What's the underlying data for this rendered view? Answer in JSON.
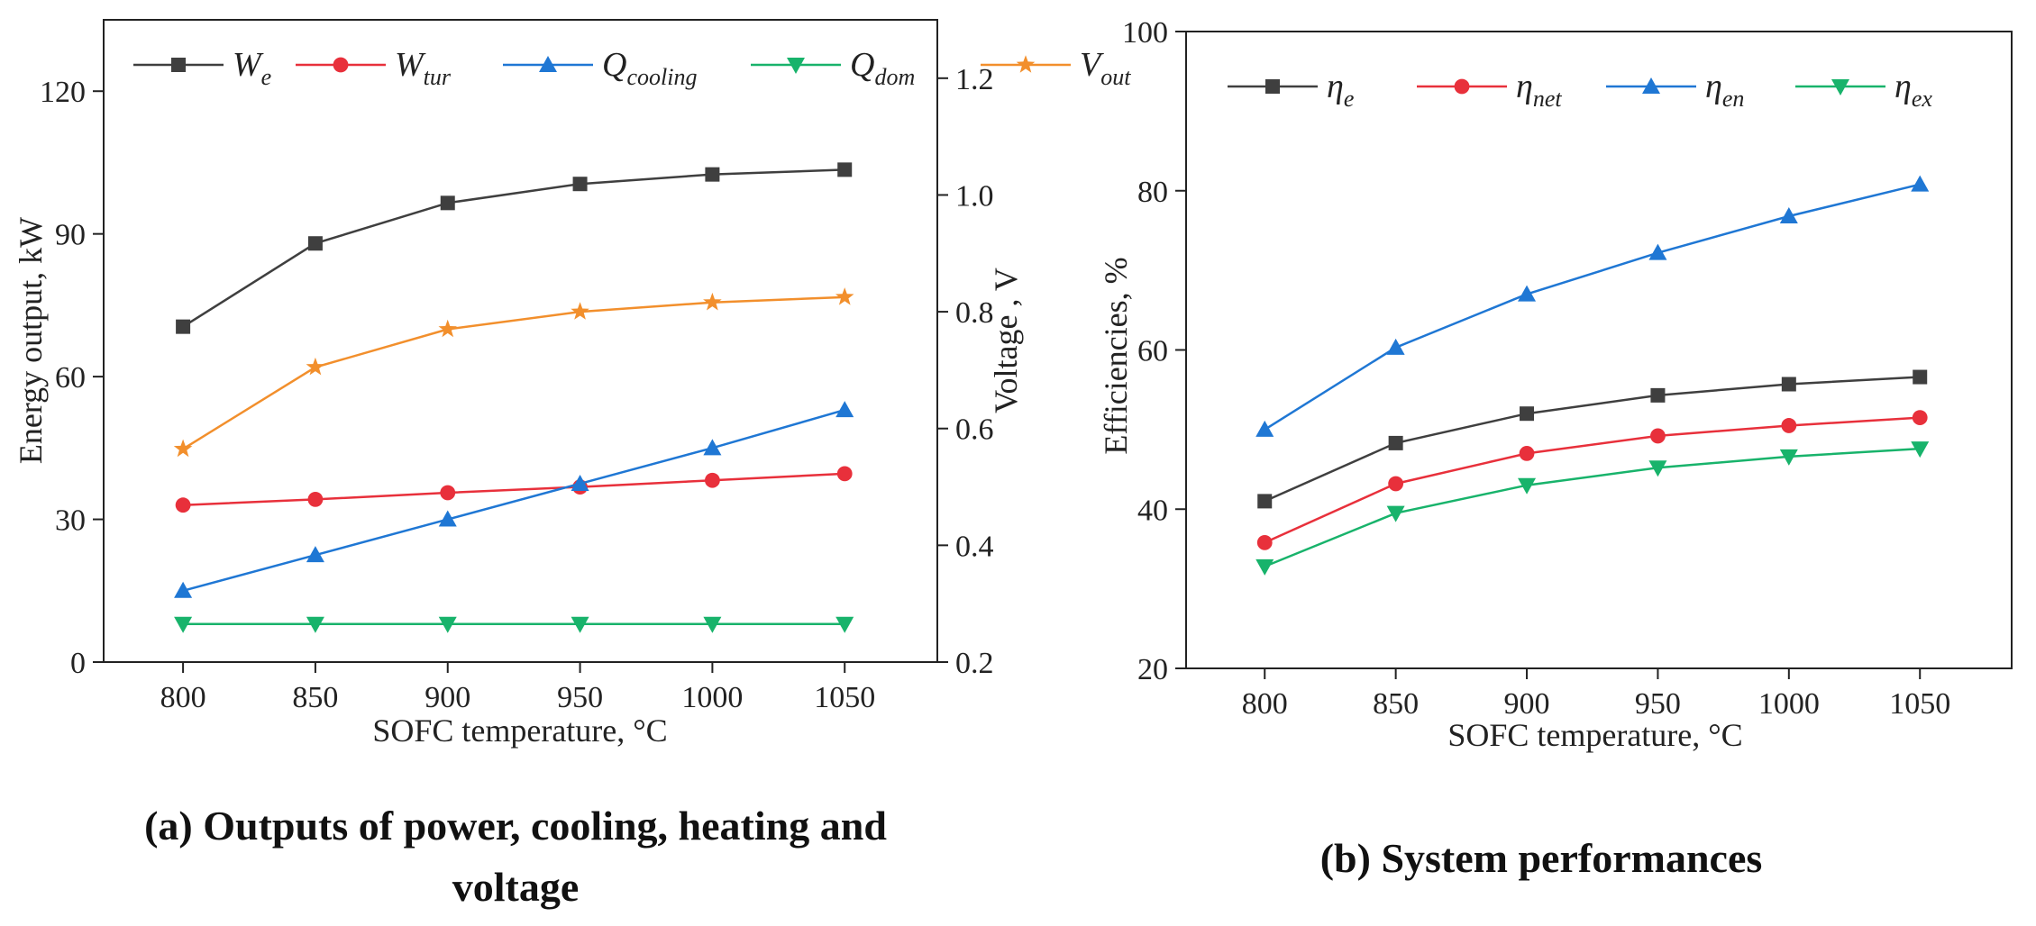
{
  "chart_data": [
    {
      "id": "a",
      "type": "line",
      "caption_lines": [
        "(a) Outputs of power, cooling, heating and",
        "voltage"
      ],
      "xlabel": "SOFC temperature, °C",
      "ylabel": "Energy output,  kW",
      "ylabel_right": "Voltage , V",
      "x": [
        800,
        850,
        900,
        950,
        1000,
        1050
      ],
      "xlim": [
        770,
        1085
      ],
      "ylim": [
        0,
        135
      ],
      "yticks": [
        0,
        30,
        60,
        90,
        120
      ],
      "ylim_right": [
        0.2,
        1.3
      ],
      "yticks_right": [
        0.2,
        0.4,
        0.6,
        0.8,
        1.0,
        1.2
      ],
      "yticks_right_labels": [
        "0.2",
        "0.4",
        "0.6",
        "0.8",
        "1.0",
        "1.2"
      ],
      "legend_position": "top",
      "series": [
        {
          "name": "W",
          "sub": "e",
          "axis": "left",
          "marker": "square",
          "color": "#3f3f3f",
          "values": [
            70.5,
            88,
            96.5,
            100.5,
            102.5,
            103.5
          ]
        },
        {
          "name": "W",
          "sub": "tur",
          "axis": "left",
          "marker": "circle",
          "color": "#e8303b",
          "values": [
            33,
            34.2,
            35.6,
            36.8,
            38.2,
            39.6
          ]
        },
        {
          "name": "Q",
          "sub": "cooling",
          "axis": "left",
          "marker": "triangle-up",
          "color": "#1f77d4",
          "values": [
            15,
            22.5,
            30,
            37.5,
            45,
            53
          ]
        },
        {
          "name": "Q",
          "sub": "dom",
          "axis": "left",
          "marker": "triangle-down",
          "color": "#18b36b",
          "values": [
            8,
            8,
            8,
            8,
            8,
            8
          ]
        },
        {
          "name": "V",
          "sub": "out",
          "axis": "right",
          "marker": "star",
          "color": "#f28f2c",
          "values": [
            0.565,
            0.705,
            0.77,
            0.8,
            0.816,
            0.825
          ]
        }
      ]
    },
    {
      "id": "b",
      "type": "line",
      "caption_lines": [
        "(b) System performances"
      ],
      "xlabel": "SOFC temperature, °C",
      "ylabel": "Efficiencies, %",
      "x": [
        800,
        850,
        900,
        950,
        1000,
        1050
      ],
      "xlim": [
        770,
        1085
      ],
      "ylim": [
        20,
        100
      ],
      "yticks": [
        20,
        40,
        60,
        80,
        100
      ],
      "legend_position": "top-left",
      "series": [
        {
          "name": "η",
          "sub": "e",
          "marker": "square",
          "color": "#3f3f3f",
          "values": [
            41,
            48.3,
            52,
            54.3,
            55.7,
            56.6
          ]
        },
        {
          "name": "η",
          "sub": "net",
          "marker": "circle",
          "color": "#e8303b",
          "values": [
            35.8,
            43.2,
            47,
            49.2,
            50.5,
            51.5
          ]
        },
        {
          "name": "η",
          "sub": "en",
          "marker": "triangle-up",
          "color": "#1f77d4",
          "values": [
            50,
            60.3,
            67,
            72.2,
            76.8,
            80.8
          ]
        },
        {
          "name": "η",
          "sub": "ex",
          "marker": "triangle-down",
          "color": "#18b36b",
          "values": [
            32.8,
            39.5,
            43,
            45.2,
            46.6,
            47.6
          ]
        }
      ]
    }
  ]
}
